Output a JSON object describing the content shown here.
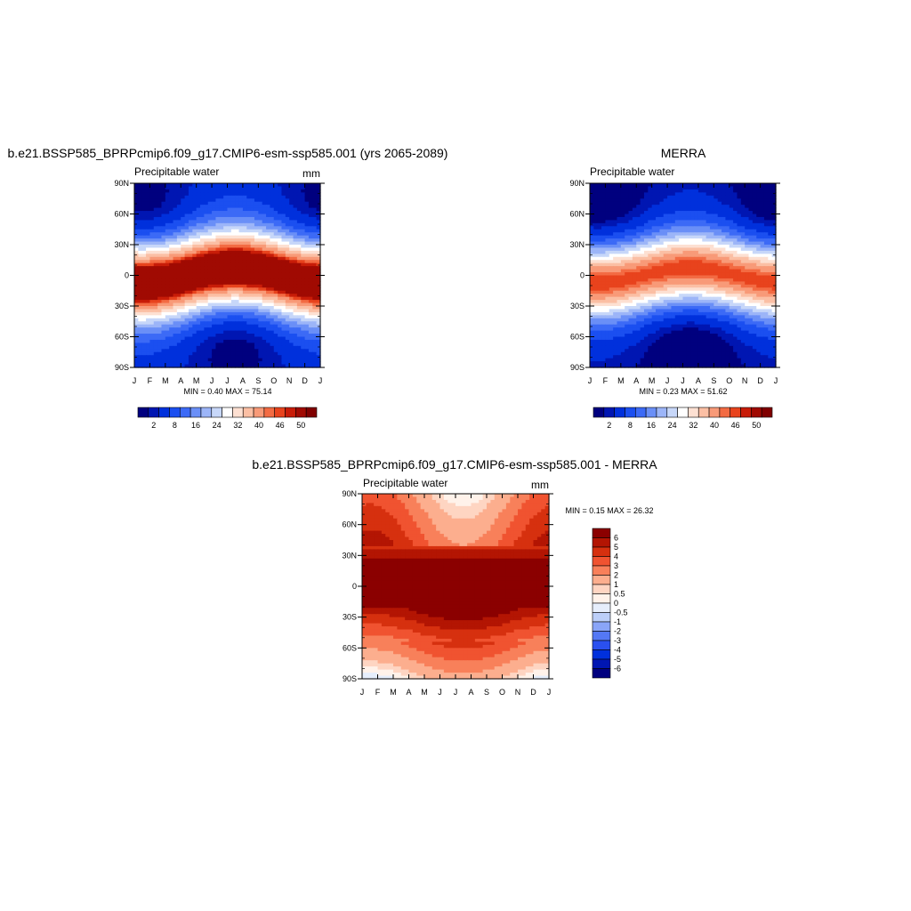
{
  "figure": {
    "months": [
      "J",
      "F",
      "M",
      "A",
      "M",
      "J",
      "J",
      "A",
      "S",
      "O",
      "N",
      "D",
      "J"
    ],
    "lat_labels": [
      "90N",
      "60N",
      "30N",
      "0",
      "30S",
      "60S",
      "90S"
    ],
    "colors": {
      "seq": [
        "#00007f",
        "#0016b2",
        "#0030dc",
        "#1b4ff0",
        "#3c6af6",
        "#6a8ff7",
        "#9cb5f8",
        "#c7d7f9",
        "#ffffff",
        "#fde0d2",
        "#fbbfa4",
        "#f89a78",
        "#f36b43",
        "#e8431d",
        "#c81c08",
        "#a00a02",
        "#800000"
      ],
      "diff": [
        "#00007f",
        "#0016b2",
        "#0030dc",
        "#2a50ef",
        "#5478f5",
        "#8aa5f8",
        "#bccff9",
        "#e6eefc",
        "#fff2ea",
        "#fed5c2",
        "#fcae8e",
        "#f8805a",
        "#f05330",
        "#d6300f",
        "#b31503",
        "#8b0000"
      ]
    }
  },
  "chart_data": [
    {
      "type": "heatmap",
      "title": "b.e21.BSSP585_BPRPcmip6.f09_g17.CMIP6-esm-ssp585.001 (yrs 2065-2089)",
      "subtitle_left": "Precipitable water",
      "subtitle_right": "mm",
      "xlabel": "",
      "ylabel": "",
      "x": [
        "J",
        "F",
        "M",
        "A",
        "M",
        "J",
        "J",
        "A",
        "S",
        "O",
        "N",
        "D",
        "J"
      ],
      "ylim": [
        -90,
        90
      ],
      "stats": "MIN =   0.40 MAX =  75.14",
      "colorbar_labels": [
        "2",
        "8",
        "16",
        "24",
        "32",
        "40",
        "46",
        "50"
      ],
      "colorbar_levels": [
        2,
        4,
        8,
        12,
        16,
        20,
        24,
        28,
        32,
        36,
        40,
        44,
        46,
        48,
        50
      ],
      "model": {
        "peak": 58,
        "amp": 12,
        "shift": 6,
        "width": 38,
        "pole": 3.5,
        "poleAmp": 2.5
      }
    },
    {
      "type": "heatmap",
      "title": "MERRA",
      "subtitle_left": "Precipitable water",
      "subtitle_right": "",
      "xlabel": "",
      "ylabel": "",
      "x": [
        "J",
        "F",
        "M",
        "A",
        "M",
        "J",
        "J",
        "A",
        "S",
        "O",
        "N",
        "D",
        "J"
      ],
      "ylim": [
        -90,
        90
      ],
      "stats": "MIN =   0.23 MAX =  51.62",
      "colorbar_labels": [
        "2",
        "8",
        "16",
        "24",
        "32",
        "40",
        "46",
        "50"
      ],
      "colorbar_levels": [
        2,
        4,
        8,
        12,
        16,
        20,
        24,
        28,
        32,
        36,
        40,
        44,
        46,
        48,
        50
      ],
      "model": {
        "peak": 47,
        "amp": 9,
        "shift": 6,
        "width": 36,
        "pole": 1.5,
        "poleAmp": 1.5
      }
    },
    {
      "type": "heatmap",
      "title": "b.e21.BSSP585_BPRPcmip6.f09_g17.CMIP6-esm-ssp585.001 - MERRA",
      "subtitle_left": "Precipitable water",
      "subtitle_right": "mm",
      "xlabel": "",
      "ylabel": "",
      "x": [
        "J",
        "F",
        "M",
        "A",
        "M",
        "J",
        "J",
        "A",
        "S",
        "O",
        "N",
        "D",
        "J"
      ],
      "ylim": [
        -90,
        90
      ],
      "stats": "MIN =   0.15 MAX =  26.32",
      "colorbar_labels": [
        "6",
        "5",
        "4",
        "3",
        "2",
        "1",
        "0.5",
        "0",
        "-0.5",
        "-1",
        "-2",
        "-3",
        "-4",
        "-5",
        "-6"
      ],
      "colorbar_levels": [
        -6,
        -5,
        -4,
        -3,
        -2,
        -1,
        -0.5,
        0,
        0.5,
        1,
        2,
        3,
        4,
        5,
        6
      ],
      "model": {
        "diff": true
      }
    }
  ]
}
